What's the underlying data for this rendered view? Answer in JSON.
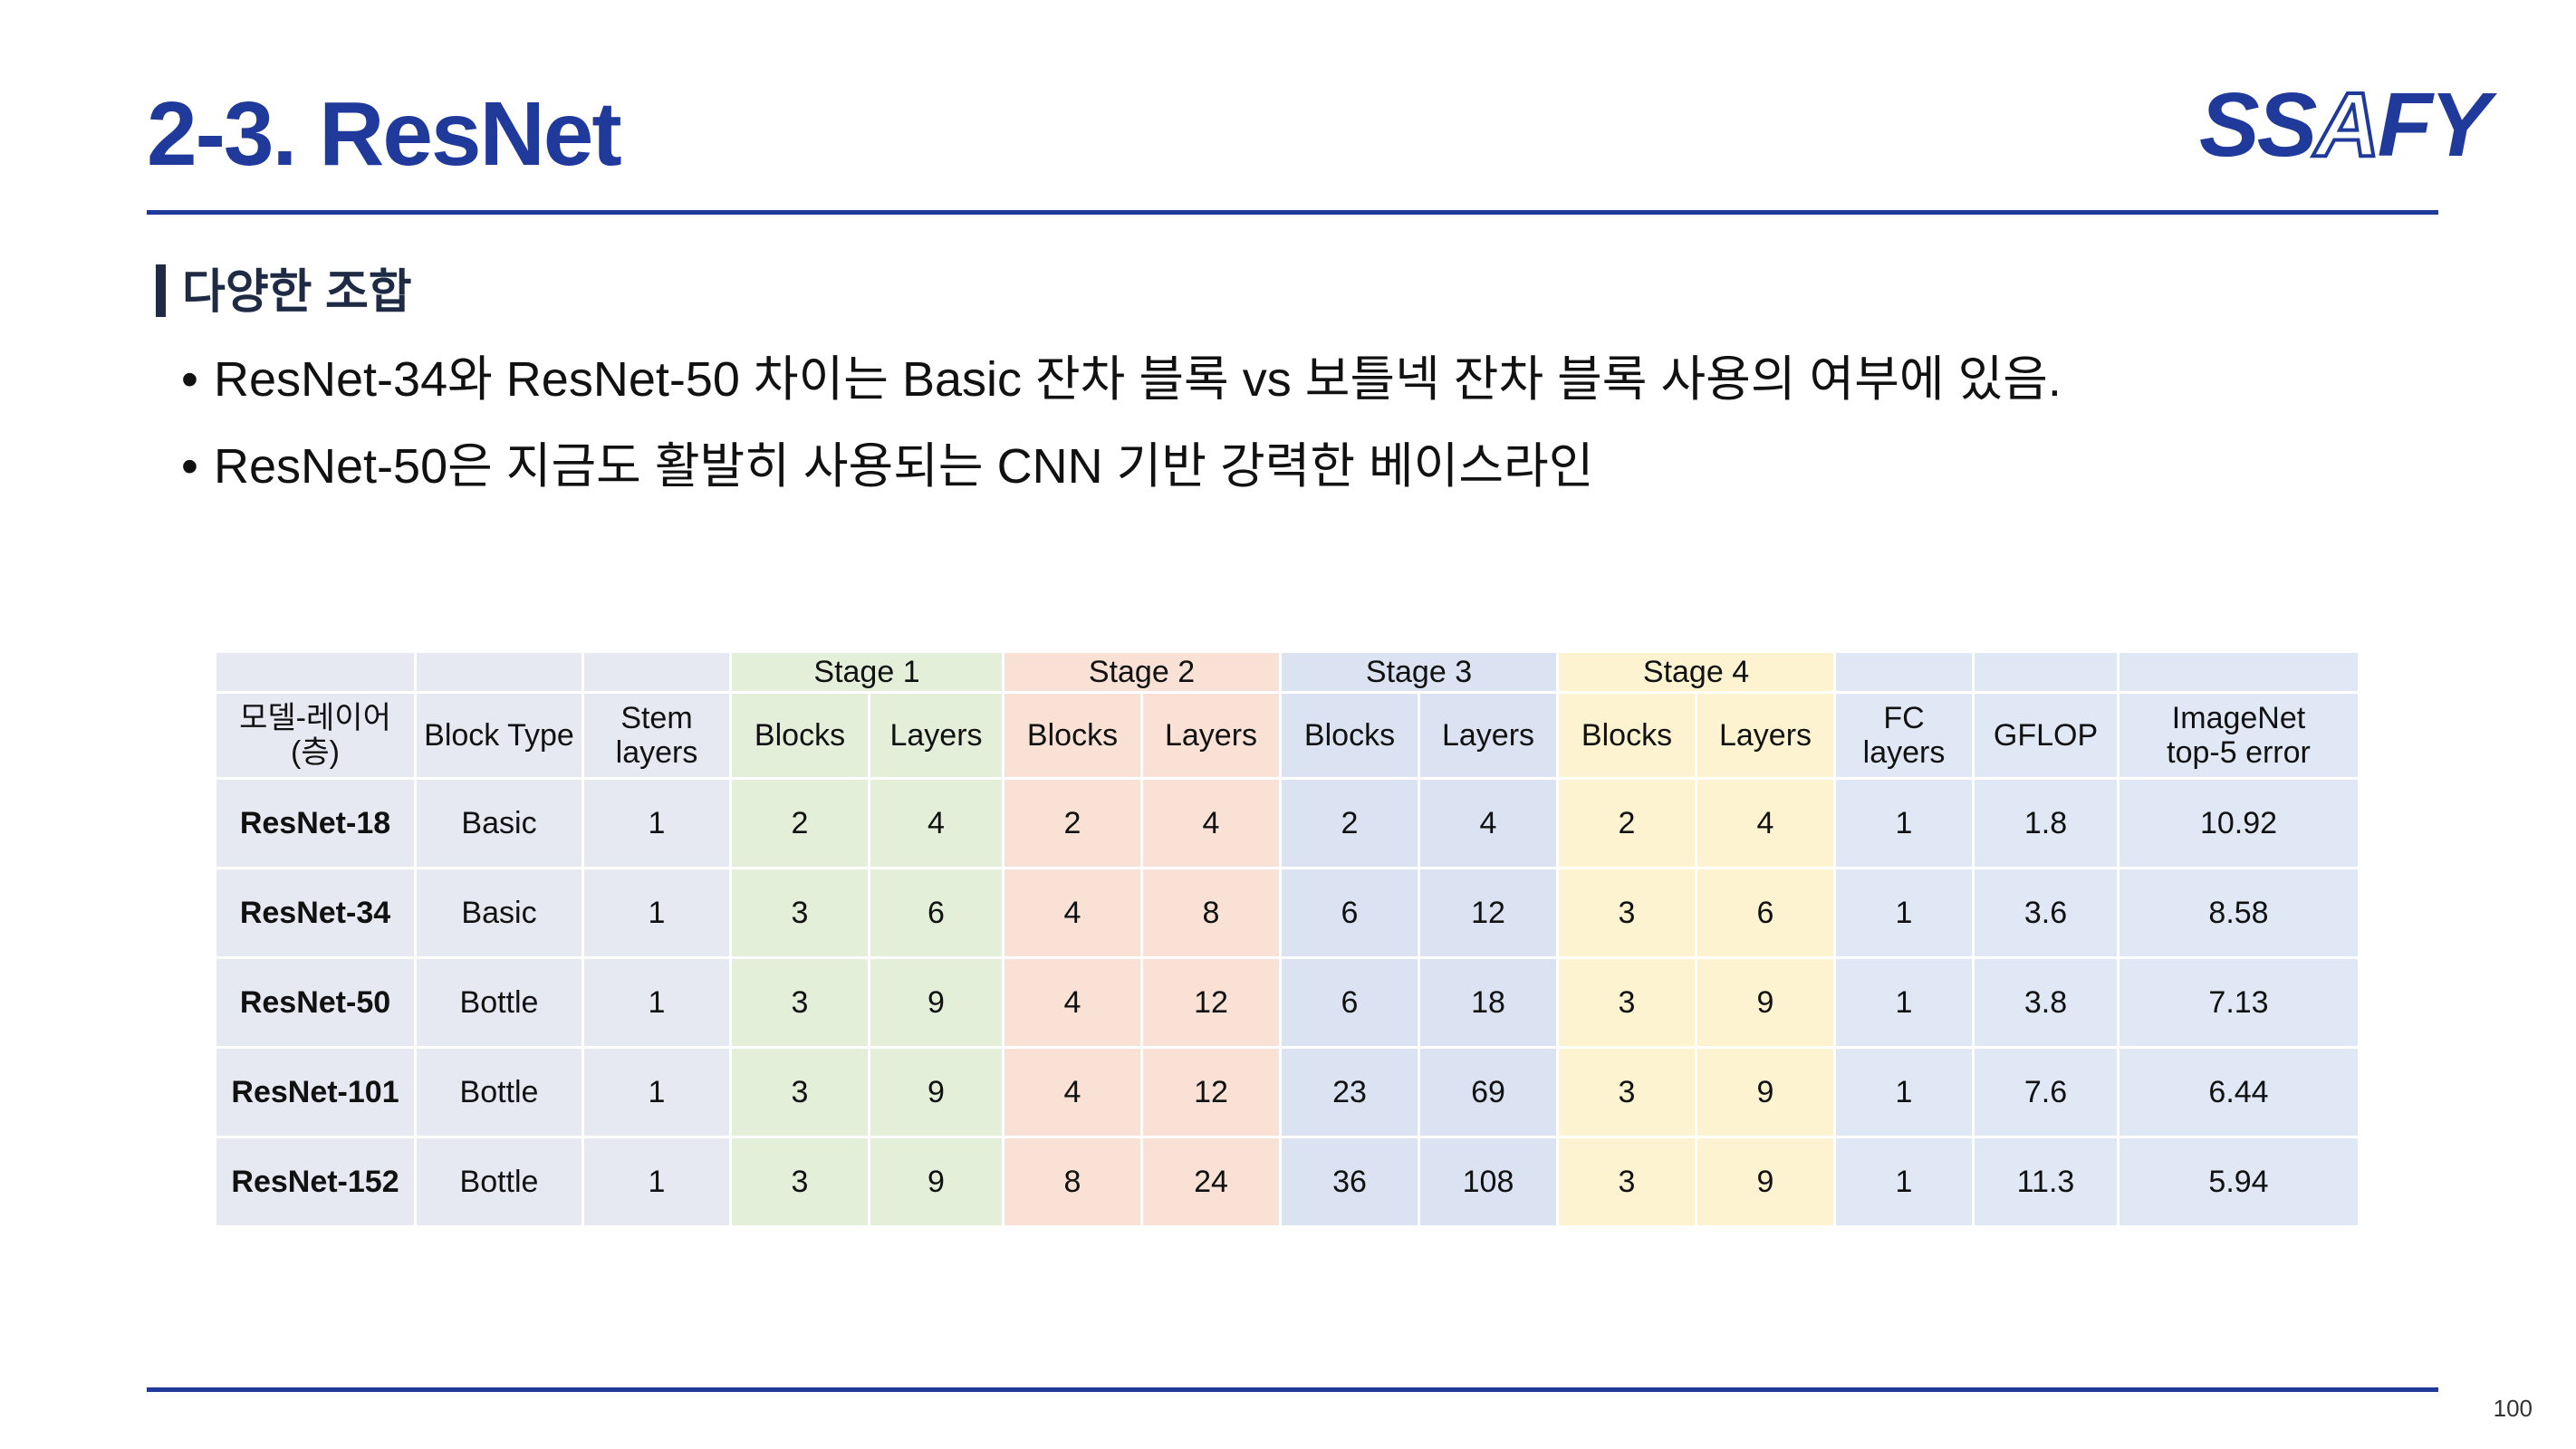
{
  "header": {
    "title": "2-3. ResNet",
    "logo": {
      "text_solid_1": "SS",
      "text_hollow": "A",
      "text_solid_2": "FY"
    }
  },
  "section": {
    "heading": "다양한 조합",
    "bullets": [
      "ResNet-34와 ResNet-50 차이는 Basic 잔차 블록 vs 보틀넥 잔차 블록 사용의 여부에 있음.",
      "ResNet-50은 지금도 활발히 사용되는 CNN 기반 강력한 베이스라인"
    ]
  },
  "table": {
    "stage_headers": [
      "Stage 1",
      "Stage 2",
      "Stage 3",
      "Stage 4"
    ],
    "column_headers": {
      "model": "모델-레이어(층)",
      "block_type": "Block Type",
      "stem_1": "Stem",
      "stem_2": "layers",
      "blocks": "Blocks",
      "layers": "Layers",
      "fc_1": "FC",
      "fc_2": "layers",
      "gflop": "GFLOP",
      "err_1": "ImageNet",
      "err_2": "top-5 error"
    },
    "rows": [
      {
        "model": "ResNet-18",
        "block": "Basic",
        "stem": "1",
        "s1b": "2",
        "s1l": "4",
        "s2b": "2",
        "s2l": "4",
        "s3b": "2",
        "s3l": "4",
        "s4b": "2",
        "s4l": "4",
        "fc": "1",
        "gflop": "1.8",
        "err": "10.92"
      },
      {
        "model": "ResNet-34",
        "block": "Basic",
        "stem": "1",
        "s1b": "3",
        "s1l": "6",
        "s2b": "4",
        "s2l": "8",
        "s3b": "6",
        "s3l": "12",
        "s4b": "3",
        "s4l": "6",
        "fc": "1",
        "gflop": "3.6",
        "err": "8.58"
      },
      {
        "model": "ResNet-50",
        "block": "Bottle",
        "stem": "1",
        "s1b": "3",
        "s1l": "9",
        "s2b": "4",
        "s2l": "12",
        "s3b": "6",
        "s3l": "18",
        "s4b": "3",
        "s4l": "9",
        "fc": "1",
        "gflop": "3.8",
        "err": "7.13"
      },
      {
        "model": "ResNet-101",
        "block": "Bottle",
        "stem": "1",
        "s1b": "3",
        "s1l": "9",
        "s2b": "4",
        "s2l": "12",
        "s3b": "23",
        "s3l": "69",
        "s4b": "3",
        "s4l": "9",
        "fc": "1",
        "gflop": "7.6",
        "err": "6.44"
      },
      {
        "model": "ResNet-152",
        "block": "Bottle",
        "stem": "1",
        "s1b": "3",
        "s1l": "9",
        "s2b": "8",
        "s2l": "24",
        "s3b": "36",
        "s3l": "108",
        "s4b": "3",
        "s4l": "9",
        "fc": "1",
        "gflop": "11.3",
        "err": "5.94"
      }
    ]
  },
  "footer": {
    "page_number": "100"
  }
}
